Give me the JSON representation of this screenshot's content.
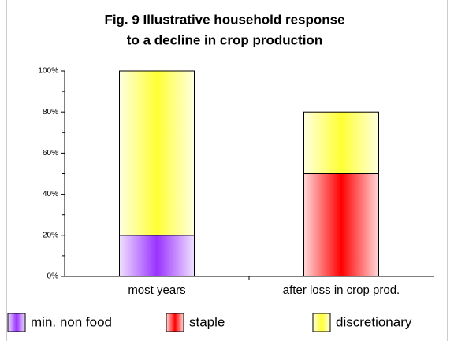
{
  "chart_data": {
    "type": "stacked_bar",
    "title": [
      "Fig. 9 Illustrative household response",
      "to a decline in crop production"
    ],
    "categories": [
      "most years",
      "after loss in crop prod."
    ],
    "series": [
      {
        "name": "min. non food",
        "color": "#9933ff",
        "values": [
          20,
          0
        ]
      },
      {
        "name": "staple",
        "color": "#ff0000",
        "values": [
          0,
          50
        ]
      },
      {
        "name": "discretionary",
        "color": "#ffff33",
        "values": [
          80,
          30
        ]
      }
    ],
    "ylim": [
      0,
      100
    ],
    "yticks": [
      {
        "value": 0,
        "label": "0%"
      },
      {
        "value": 20,
        "label": "20%"
      },
      {
        "value": 40,
        "label": "40%"
      },
      {
        "value": 60,
        "label": "60%"
      },
      {
        "value": 80,
        "label": "80%"
      },
      {
        "value": 100,
        "label": "100%"
      }
    ],
    "legend": "bottom"
  }
}
